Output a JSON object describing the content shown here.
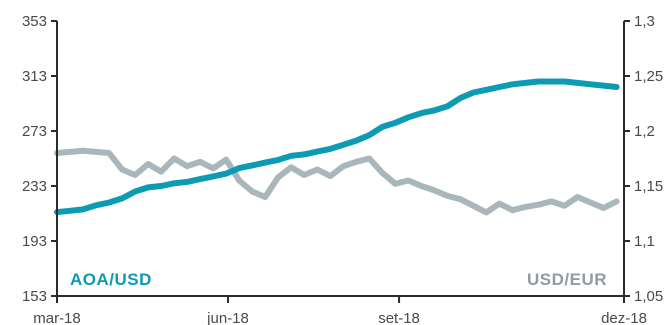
{
  "chart_data": {
    "type": "line",
    "x_ticks": [
      "mar-18",
      "jun-18",
      "set-18",
      "dez-18"
    ],
    "y_left": {
      "ticks": [
        "353",
        "313",
        "273",
        "233",
        "193",
        "153"
      ],
      "ylim": [
        153,
        353
      ]
    },
    "y_right": {
      "ticks": [
        "1,3",
        "1,25",
        "1,2",
        "1,15",
        "1,1",
        "1,05"
      ],
      "ylim": [
        1.05,
        1.3
      ]
    },
    "grid": false,
    "series": [
      {
        "name": "AOA/USD",
        "axis": "left",
        "color": "#0d9bb3",
        "points": [
          [
            "2018-03-01",
            214
          ],
          [
            "2018-03-08",
            215
          ],
          [
            "2018-03-15",
            216
          ],
          [
            "2018-03-22",
            219
          ],
          [
            "2018-03-29",
            221
          ],
          [
            "2018-04-05",
            224
          ],
          [
            "2018-04-12",
            229
          ],
          [
            "2018-04-19",
            232
          ],
          [
            "2018-04-26",
            233
          ],
          [
            "2018-05-03",
            235
          ],
          [
            "2018-05-10",
            236
          ],
          [
            "2018-05-17",
            238
          ],
          [
            "2018-05-24",
            240
          ],
          [
            "2018-05-31",
            242
          ],
          [
            "2018-06-07",
            246
          ],
          [
            "2018-06-14",
            248
          ],
          [
            "2018-06-21",
            250
          ],
          [
            "2018-06-28",
            252
          ],
          [
            "2018-07-05",
            255
          ],
          [
            "2018-07-12",
            256
          ],
          [
            "2018-07-19",
            258
          ],
          [
            "2018-07-26",
            260
          ],
          [
            "2018-08-02",
            263
          ],
          [
            "2018-08-09",
            266
          ],
          [
            "2018-08-16",
            270
          ],
          [
            "2018-08-23",
            276
          ],
          [
            "2018-08-30",
            279
          ],
          [
            "2018-09-06",
            283
          ],
          [
            "2018-09-13",
            286
          ],
          [
            "2018-09-20",
            288
          ],
          [
            "2018-09-27",
            291
          ],
          [
            "2018-10-04",
            297
          ],
          [
            "2018-10-11",
            301
          ],
          [
            "2018-10-18",
            303
          ],
          [
            "2018-10-25",
            305
          ],
          [
            "2018-11-01",
            307
          ],
          [
            "2018-11-08",
            308
          ],
          [
            "2018-11-15",
            309
          ],
          [
            "2018-11-22",
            309
          ],
          [
            "2018-11-29",
            309
          ],
          [
            "2018-12-06",
            308
          ],
          [
            "2018-12-13",
            307
          ],
          [
            "2018-12-20",
            306
          ],
          [
            "2018-12-27",
            305
          ]
        ]
      },
      {
        "name": "USD/EUR",
        "axis": "right",
        "color": "#a9b7bd",
        "points": [
          [
            "2018-03-01",
            1.18
          ],
          [
            "2018-03-08",
            1.181
          ],
          [
            "2018-03-15",
            1.182
          ],
          [
            "2018-03-22",
            1.181
          ],
          [
            "2018-03-29",
            1.18
          ],
          [
            "2018-04-05",
            1.165
          ],
          [
            "2018-04-12",
            1.16
          ],
          [
            "2018-04-19",
            1.17
          ],
          [
            "2018-04-26",
            1.163
          ],
          [
            "2018-05-03",
            1.175
          ],
          [
            "2018-05-10",
            1.168
          ],
          [
            "2018-05-17",
            1.172
          ],
          [
            "2018-05-24",
            1.166
          ],
          [
            "2018-05-31",
            1.174
          ],
          [
            "2018-06-07",
            1.155
          ],
          [
            "2018-06-14",
            1.145
          ],
          [
            "2018-06-21",
            1.14
          ],
          [
            "2018-06-28",
            1.158
          ],
          [
            "2018-07-05",
            1.167
          ],
          [
            "2018-07-12",
            1.16
          ],
          [
            "2018-07-19",
            1.165
          ],
          [
            "2018-07-26",
            1.159
          ],
          [
            "2018-08-02",
            1.168
          ],
          [
            "2018-08-09",
            1.172
          ],
          [
            "2018-08-16",
            1.175
          ],
          [
            "2018-08-23",
            1.162
          ],
          [
            "2018-08-30",
            1.152
          ],
          [
            "2018-09-06",
            1.155
          ],
          [
            "2018-09-13",
            1.15
          ],
          [
            "2018-09-20",
            1.146
          ],
          [
            "2018-09-27",
            1.141
          ],
          [
            "2018-10-04",
            1.138
          ],
          [
            "2018-10-11",
            1.132
          ],
          [
            "2018-10-18",
            1.126
          ],
          [
            "2018-10-25",
            1.134
          ],
          [
            "2018-11-01",
            1.128
          ],
          [
            "2018-11-08",
            1.131
          ],
          [
            "2018-11-15",
            1.133
          ],
          [
            "2018-11-22",
            1.136
          ],
          [
            "2018-11-29",
            1.132
          ],
          [
            "2018-12-06",
            1.14
          ],
          [
            "2018-12-13",
            1.135
          ],
          [
            "2018-12-20",
            1.13
          ],
          [
            "2018-12-27",
            1.136
          ]
        ]
      }
    ]
  }
}
